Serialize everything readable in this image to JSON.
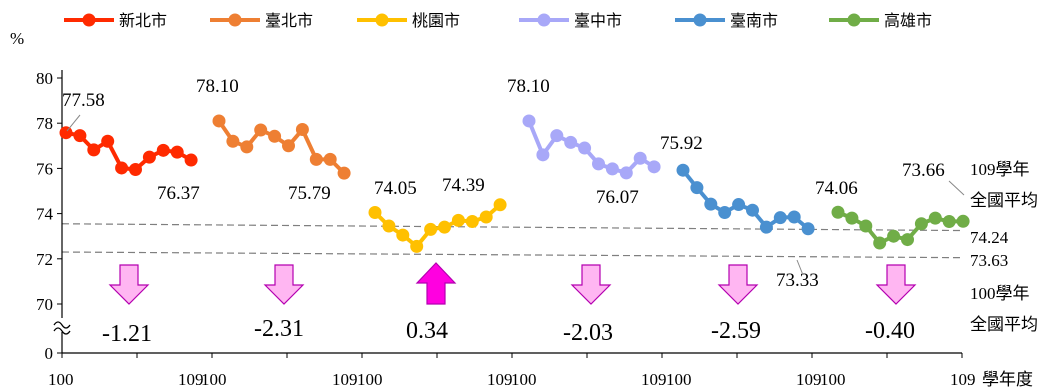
{
  "chart_data": {
    "type": "line",
    "ylabel": "%",
    "xlabel": "學年度",
    "yticks": [
      "80",
      "78",
      "76",
      "74",
      "72",
      "70",
      "0"
    ],
    "ylim": [
      70,
      80
    ],
    "axis_break": true,
    "grid": false,
    "legend_position": "top",
    "x_tick_labels": [
      "100",
      "109",
      "100",
      "109",
      "100",
      "109",
      "100",
      "109",
      "100",
      "109",
      "100",
      "109"
    ],
    "x_years": [
      100,
      101,
      102,
      103,
      104,
      105,
      106,
      107,
      108,
      109
    ],
    "series": [
      {
        "name": "新北市",
        "color": "#FF2A00",
        "values": [
          77.58,
          77.45,
          76.82,
          77.2,
          76.02,
          75.95,
          76.5,
          76.8,
          76.72,
          76.37
        ],
        "first_label": "77.58",
        "last_label": "76.37",
        "change": "-1.21",
        "arrow": "down",
        "arrow_color": "#FFB6F2"
      },
      {
        "name": "臺北市",
        "color": "#EE7F33",
        "values": [
          78.1,
          77.2,
          76.95,
          77.7,
          77.42,
          77.0,
          77.72,
          76.4,
          76.4,
          75.79
        ],
        "first_label": "78.10",
        "last_label": "75.79",
        "change": "-2.31",
        "arrow": "down",
        "arrow_color": "#FFB6F2"
      },
      {
        "name": "桃園市",
        "color": "#FFC000",
        "values": [
          74.05,
          73.45,
          73.05,
          72.55,
          73.3,
          73.4,
          73.7,
          73.65,
          73.85,
          74.39
        ],
        "first_label": "74.05",
        "last_label": "74.39",
        "change": "0.34",
        "arrow": "up",
        "arrow_color": "#FF00E0"
      },
      {
        "name": "臺中市",
        "color": "#A8A8F8",
        "values": [
          78.1,
          76.6,
          77.45,
          77.15,
          76.9,
          76.2,
          75.98,
          75.8,
          76.45,
          76.07
        ],
        "first_label": "78.10",
        "last_label": "76.07",
        "change": "-2.03",
        "arrow": "down",
        "arrow_color": "#FFB6F2"
      },
      {
        "name": "臺南市",
        "color": "#4A90D0",
        "values": [
          75.92,
          75.15,
          74.42,
          74.05,
          74.4,
          74.15,
          73.4,
          73.82,
          73.85,
          73.33
        ],
        "first_label": "75.92",
        "last_label": "73.33",
        "change": "-2.59",
        "arrow": "down",
        "arrow_color": "#FFB6F2"
      },
      {
        "name": "高雄市",
        "color": "#70AD47",
        "values": [
          74.06,
          73.8,
          73.45,
          72.7,
          73.0,
          72.85,
          73.55,
          73.8,
          73.65,
          73.66
        ],
        "first_label": "74.06",
        "last_label": "73.66",
        "change": "-0.40",
        "arrow": "down",
        "arrow_color": "#FFB6F2"
      }
    ],
    "reference_lines": [
      {
        "label_1": "109學年",
        "label_2": "全國平均",
        "value_label": "73.63",
        "start": 73.55,
        "end": 73.25
      },
      {
        "label_1": "100學年",
        "label_2": "全國平均",
        "value_label": "74.24",
        "start": 72.3,
        "end": 72.05
      }
    ]
  }
}
